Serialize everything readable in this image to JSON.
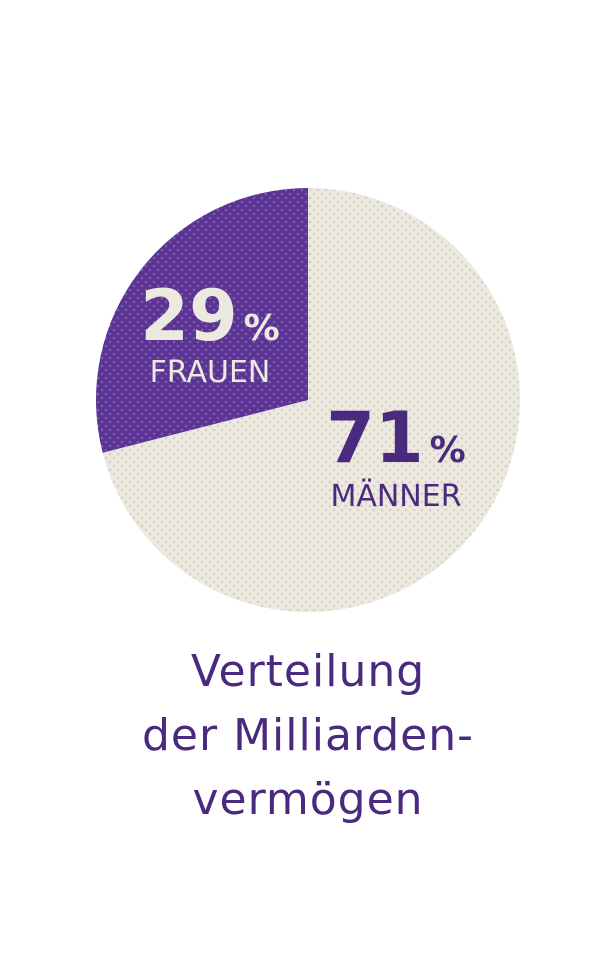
{
  "chart_data": {
    "type": "pie",
    "slices": [
      {
        "label": "MÄNNER",
        "value": 71,
        "value_label": "71",
        "unit": "%",
        "color": "#ece9e0"
      },
      {
        "label": "FRAUEN",
        "value": 29,
        "value_label": "29",
        "unit": "%",
        "color": "#5a3393"
      }
    ],
    "title_lines": [
      "Verteilung",
      "der Milliarden-",
      "vermögen"
    ],
    "text_colors": {
      "dark_label": "#4a2a7e",
      "light_label": "#ece9e0"
    }
  }
}
